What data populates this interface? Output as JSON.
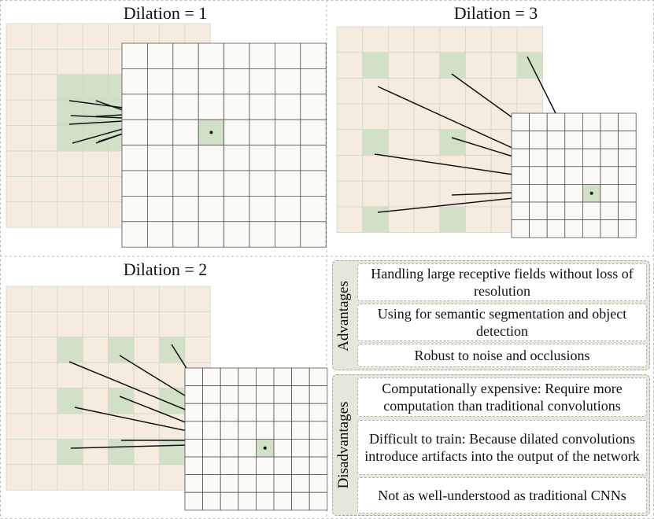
{
  "panels": [
    {
      "title": "Dilation = 1",
      "dilation": 1
    },
    {
      "title": "Dilation = 3",
      "dilation": 3
    },
    {
      "title": "Dilation = 2",
      "dilation": 2
    }
  ],
  "advantages": {
    "label": "Advantages",
    "items": [
      "Handling large receptive fields without loss of resolution",
      "Using for semantic segmentation and object detection",
      "Robust to noise and occlusions"
    ]
  },
  "disadvantages": {
    "label": "Disadvantages",
    "items": [
      "Computationally expensive: Require more computation than traditional convolutions",
      "Difficult to train: Because dilated convolutions introduce artifacts into the output of the network",
      "Not as well-understood as traditional CNNs"
    ]
  },
  "colors": {
    "input_cell": "#f6ebdf",
    "input_grid": "#cfd8c6",
    "kernel_cell": "#d2e0c8",
    "output_cell": "#fbfaf6",
    "output_grid": "#555555",
    "divider": "#b9b9b9",
    "line": "#111111"
  }
}
